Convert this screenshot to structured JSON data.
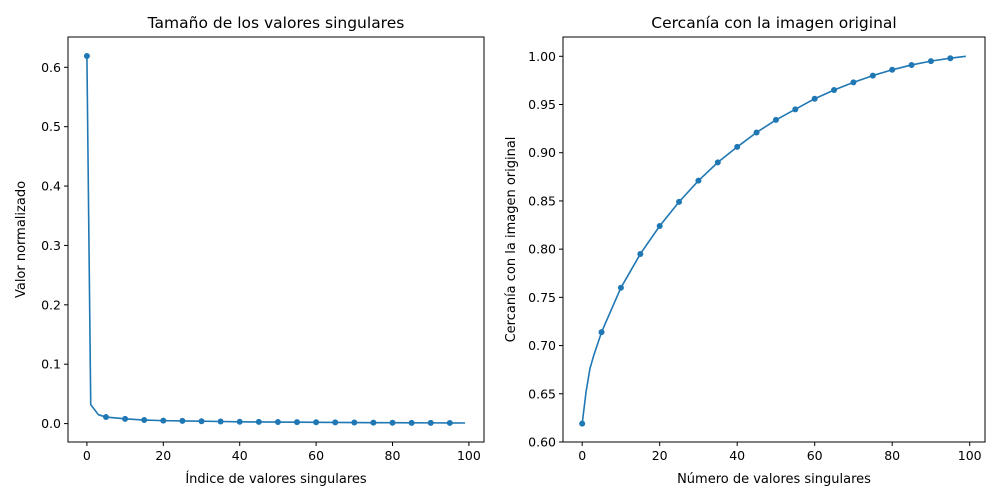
{
  "chart_data": [
    {
      "type": "line",
      "title": "Tamaño de los valores singulares",
      "xlabel": "Índice de valores singulares",
      "ylabel": "Valor normalizado",
      "xlim": [
        -4.95,
        103.95
      ],
      "ylim": [
        -0.031,
        0.651
      ],
      "xticks": [
        0,
        20,
        40,
        60,
        80,
        100
      ],
      "yticks": [
        0.0,
        0.1,
        0.2,
        0.3,
        0.4,
        0.5,
        0.6
      ],
      "ytick_decimals": 1,
      "marker_every": 5,
      "color": "#1f77b4",
      "series": [
        {
          "x": [
            0,
            1,
            3,
            5,
            10,
            15,
            20,
            25,
            30,
            35,
            40,
            45,
            50,
            55,
            60,
            65,
            70,
            75,
            80,
            85,
            90,
            95,
            99
          ],
          "y": [
            0.619,
            0.032,
            0.015,
            0.011,
            0.008,
            0.006,
            0.005,
            0.0045,
            0.004,
            0.0035,
            0.003,
            0.0028,
            0.0026,
            0.0024,
            0.0022,
            0.002,
            0.0018,
            0.0016,
            0.0015,
            0.0013,
            0.0012,
            0.0011,
            0.001
          ]
        }
      ]
    },
    {
      "type": "line",
      "title": "Cercanía con la imagen original",
      "xlabel": "Número de valores singulares",
      "ylabel": "Cercanía con la imagen original",
      "xlim": [
        -4.95,
        103.95
      ],
      "ylim": [
        0.6,
        1.02
      ],
      "xticks": [
        0,
        20,
        40,
        60,
        80,
        100
      ],
      "yticks": [
        0.6,
        0.65,
        0.7,
        0.75,
        0.8,
        0.85,
        0.9,
        0.95,
        1.0
      ],
      "ytick_decimals": 2,
      "marker_every": 5,
      "color": "#1f77b4",
      "series": [
        {
          "x": [
            0,
            1,
            2,
            3,
            5,
            10,
            15,
            20,
            25,
            30,
            35,
            40,
            45,
            50,
            55,
            60,
            65,
            70,
            75,
            80,
            85,
            90,
            95,
            99
          ],
          "y": [
            0.619,
            0.652,
            0.676,
            0.69,
            0.714,
            0.76,
            0.795,
            0.824,
            0.849,
            0.871,
            0.89,
            0.906,
            0.921,
            0.934,
            0.945,
            0.956,
            0.965,
            0.973,
            0.98,
            0.986,
            0.991,
            0.995,
            0.998,
            1.0
          ]
        }
      ]
    }
  ]
}
